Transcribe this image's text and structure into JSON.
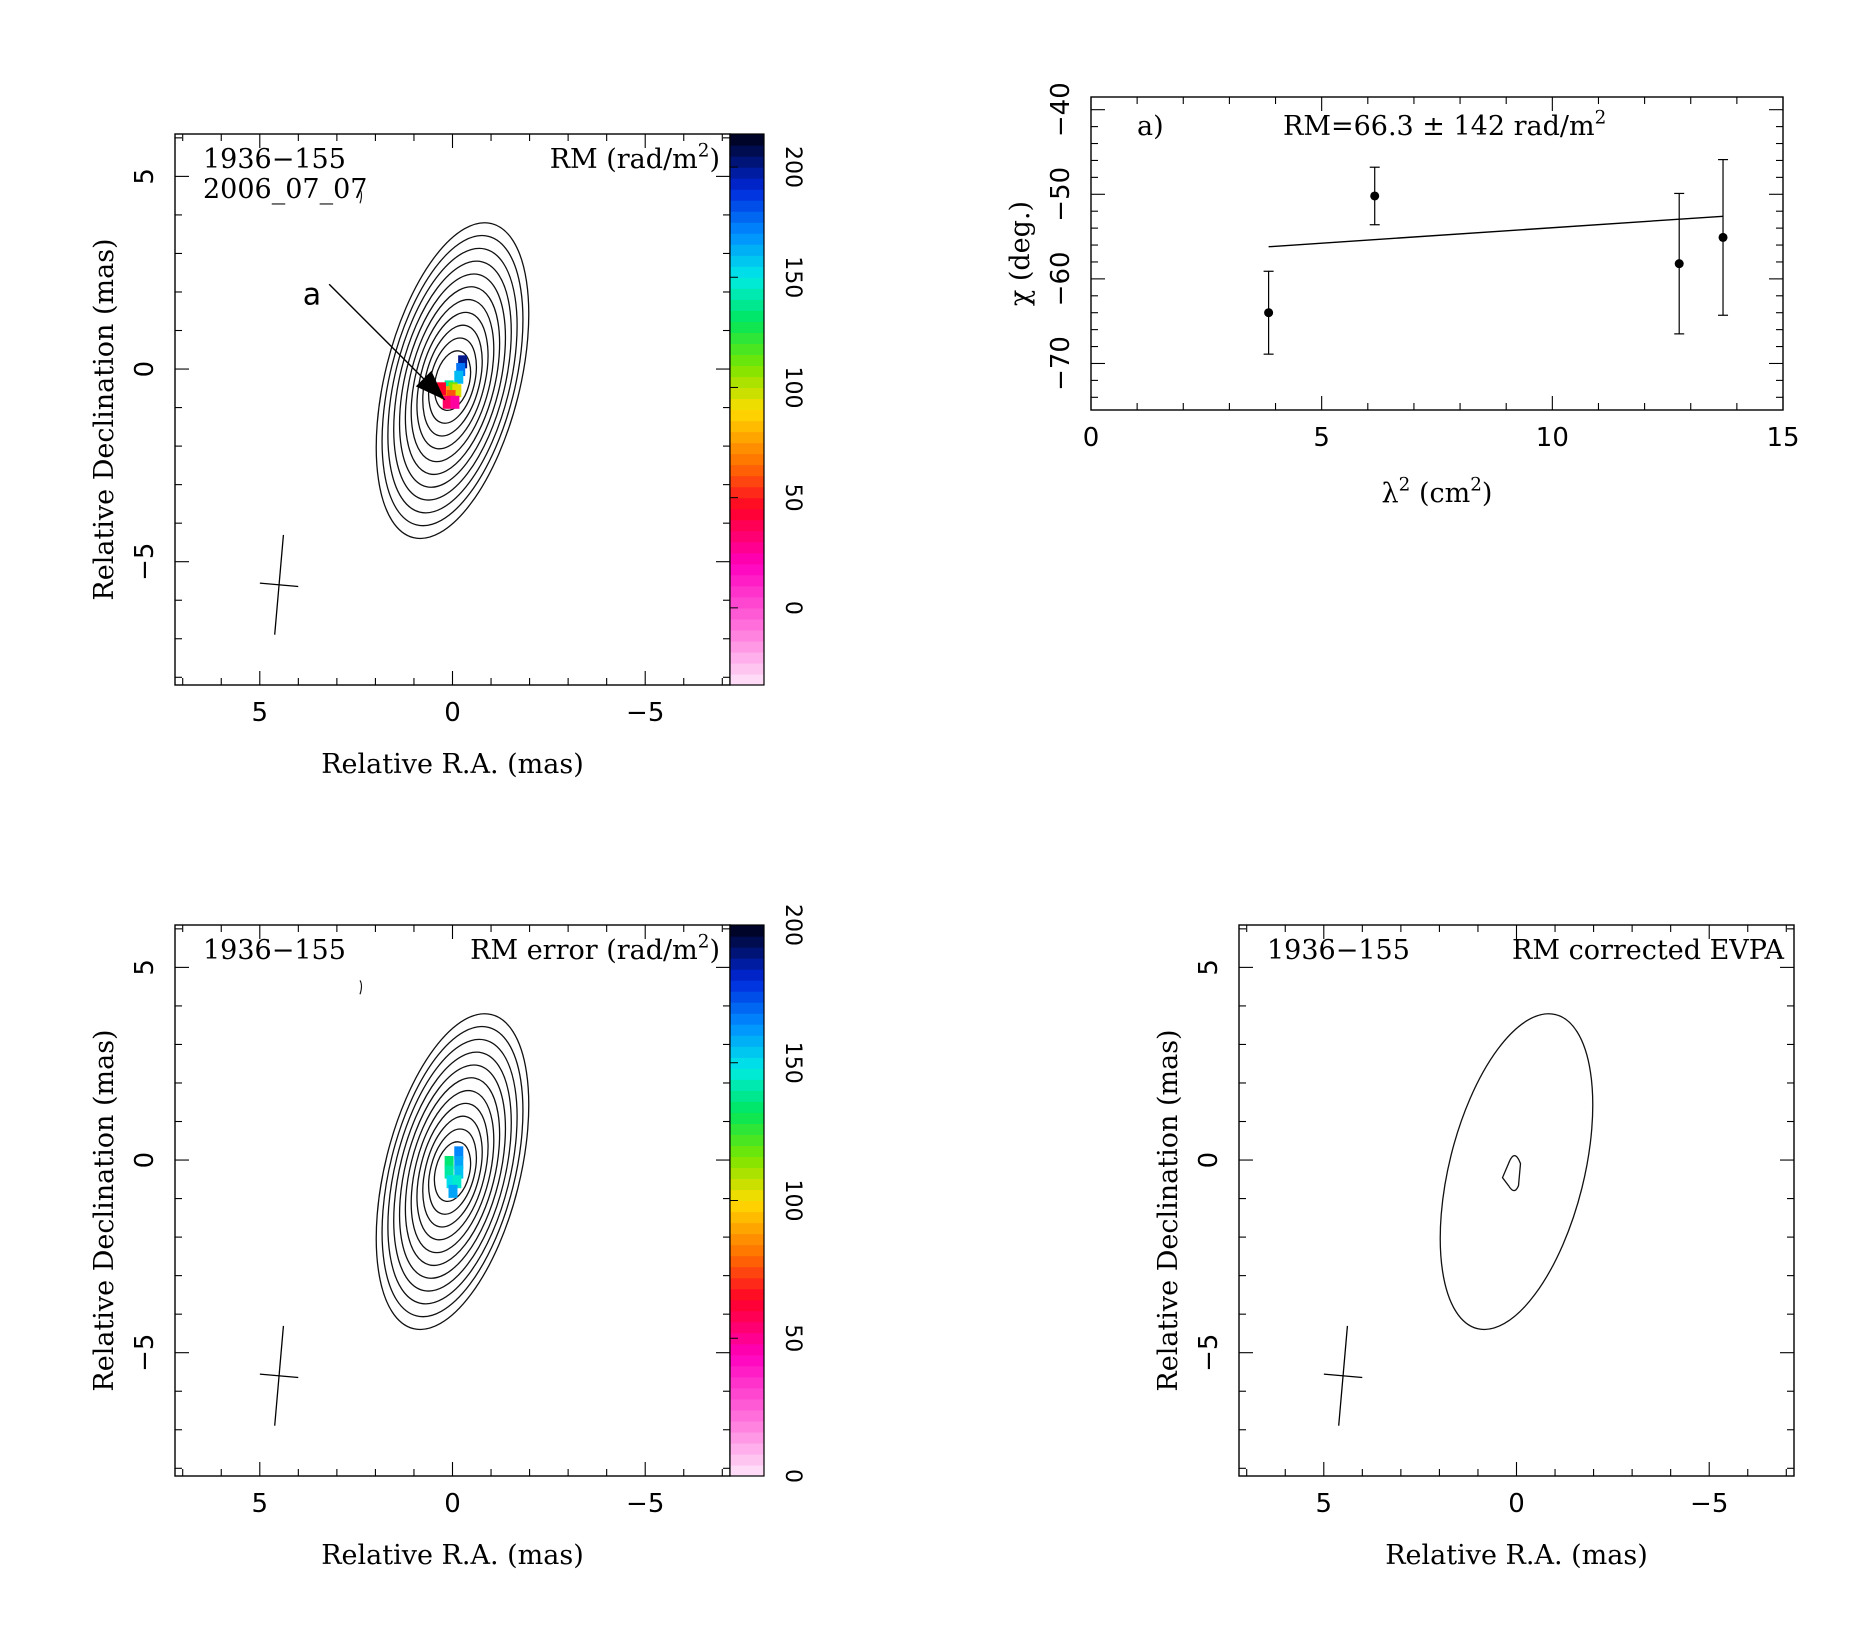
{
  "chart_data": [
    {
      "id": "rm_map",
      "type": "heatmap",
      "source": "1936−155",
      "epoch": "2006_07_07",
      "quantity_label": "RM (rad/m",
      "quantity_sup": "2",
      "quantity_close": ")",
      "xlabel": "Relative R.A. (mas)",
      "ylabel": "Relative Declination (mas)",
      "xlim": [
        7.2,
        -7.2
      ],
      "ylim": [
        -8.2,
        6.1
      ],
      "xticks": [
        {
          "v": 5,
          "label": "5"
        },
        {
          "v": 0,
          "label": "0"
        },
        {
          "v": -5,
          "label": "−5"
        }
      ],
      "yticks": [
        {
          "v": 5,
          "label": "5"
        },
        {
          "v": 0,
          "label": "0"
        },
        {
          "v": -5,
          "label": "−5"
        }
      ],
      "colorbar": {
        "range": [
          -35,
          215
        ],
        "ticks": [
          {
            "v": 0,
            "label": "0"
          },
          {
            "v": 50,
            "label": "50"
          },
          {
            "v": 100,
            "label": "100"
          },
          {
            "v": 150,
            "label": "150"
          },
          {
            "v": 200,
            "label": "200"
          }
        ]
      },
      "contour_levels": 11,
      "annotation": {
        "label": "a",
        "from": [
          3.2,
          2.2
        ],
        "to": [
          0.2,
          -0.8
        ]
      },
      "beam": {
        "center": [
          4.5,
          -5.6
        ],
        "major": 2.6,
        "minor": 1.0
      },
      "pixels": [
        {
          "x": -0.25,
          "y": 0.2,
          "v": 200
        },
        {
          "x": -0.2,
          "y": 0.0,
          "v": 175
        },
        {
          "x": -0.15,
          "y": -0.2,
          "v": 160
        },
        {
          "x": 0.1,
          "y": -0.45,
          "v": 140
        },
        {
          "x": 0.0,
          "y": -0.5,
          "v": 110
        },
        {
          "x": -0.1,
          "y": -0.55,
          "v": 95
        },
        {
          "x": 0.2,
          "y": -0.6,
          "v": 75
        },
        {
          "x": 0.05,
          "y": -0.7,
          "v": 60
        },
        {
          "x": 0.15,
          "y": -0.85,
          "v": 35
        },
        {
          "x": -0.05,
          "y": -0.85,
          "v": 25
        },
        {
          "x": 0.3,
          "y": -0.5,
          "v": 45
        }
      ]
    },
    {
      "id": "rm_fit",
      "type": "scatter",
      "panel_label": "a)",
      "fit_text": "RM=66.3 ± 142 rad/m",
      "fit_sup": "2",
      "xlabel": "λ",
      "xlabel_sup": "2",
      "xlabel_units": " (cm",
      "xlabel_units_sup": "2",
      "xlabel_close": ")",
      "ylabel": "χ (deg.)",
      "xlim": [
        0,
        15
      ],
      "ylim": [
        -75.5,
        -38.5
      ],
      "xticks": [
        {
          "v": 0,
          "label": "0"
        },
        {
          "v": 5,
          "label": "5"
        },
        {
          "v": 10,
          "label": "10"
        },
        {
          "v": 15,
          "label": "15"
        }
      ],
      "yticks": [
        {
          "v": -40,
          "label": "−40"
        },
        {
          "v": -50,
          "label": "−50"
        },
        {
          "v": -60,
          "label": "−60"
        },
        {
          "v": -70,
          "label": "−70"
        }
      ],
      "points": [
        {
          "x": 3.85,
          "y": -64.0,
          "err": 4.9
        },
        {
          "x": 6.15,
          "y": -50.2,
          "err": 3.4
        },
        {
          "x": 12.75,
          "y": -58.2,
          "err": 8.3
        },
        {
          "x": 13.7,
          "y": -55.1,
          "err": 9.2
        }
      ],
      "fit_line": [
        {
          "x": 3.85,
          "y": -56.2
        },
        {
          "x": 13.7,
          "y": -52.6
        }
      ]
    },
    {
      "id": "rm_error_map",
      "type": "heatmap",
      "source": "1936−155",
      "quantity_label": "RM error (rad/m",
      "quantity_sup": "2",
      "quantity_close": ")",
      "xlabel": "Relative R.A. (mas)",
      "ylabel": "Relative Declination (mas)",
      "xlim": [
        7.2,
        -7.2
      ],
      "ylim": [
        -8.2,
        6.1
      ],
      "xticks": [
        {
          "v": 5,
          "label": "5"
        },
        {
          "v": 0,
          "label": "0"
        },
        {
          "v": -5,
          "label": "−5"
        }
      ],
      "yticks": [
        {
          "v": 5,
          "label": "5"
        },
        {
          "v": 0,
          "label": "0"
        },
        {
          "v": -5,
          "label": "−5"
        }
      ],
      "colorbar": {
        "range": [
          0,
          200
        ],
        "ticks": [
          {
            "v": 0,
            "label": "0"
          },
          {
            "v": 50,
            "label": "50"
          },
          {
            "v": 100,
            "label": "100"
          },
          {
            "v": 150,
            "label": "150"
          },
          {
            "v": 200,
            "label": "200"
          }
        ]
      },
      "contour_levels": 11,
      "beam": {
        "center": [
          4.5,
          -5.6
        ],
        "major": 2.6,
        "minor": 1.0
      },
      "pixels": [
        {
          "x": -0.15,
          "y": 0.2,
          "v": 165
        },
        {
          "x": -0.15,
          "y": -0.05,
          "v": 160
        },
        {
          "x": 0.1,
          "y": -0.05,
          "v": 135
        },
        {
          "x": 0.1,
          "y": -0.3,
          "v": 140
        },
        {
          "x": -0.15,
          "y": -0.3,
          "v": 155
        },
        {
          "x": 0.05,
          "y": -0.55,
          "v": 150
        },
        {
          "x": -0.1,
          "y": -0.55,
          "v": 145
        },
        {
          "x": 0.0,
          "y": -0.8,
          "v": 160
        }
      ]
    },
    {
      "id": "rm_corrected_evpa",
      "type": "scatter",
      "source": "1936−155",
      "quantity_label": "RM corrected EVPA",
      "xlabel": "Relative R.A. (mas)",
      "ylabel": "Relative Declination (mas)",
      "xlim": [
        7.2,
        -7.2
      ],
      "ylim": [
        -8.2,
        6.1
      ],
      "xticks": [
        {
          "v": 5,
          "label": "5"
        },
        {
          "v": 0,
          "label": "0"
        },
        {
          "v": -5,
          "label": "−5"
        }
      ],
      "yticks": [
        {
          "v": 5,
          "label": "5"
        },
        {
          "v": 0,
          "label": "0"
        },
        {
          "v": -5,
          "label": "−5"
        }
      ],
      "contour_levels": 1,
      "beam": {
        "center": [
          4.5,
          -5.6
        ],
        "major": 2.6,
        "minor": 1.0
      }
    }
  ]
}
